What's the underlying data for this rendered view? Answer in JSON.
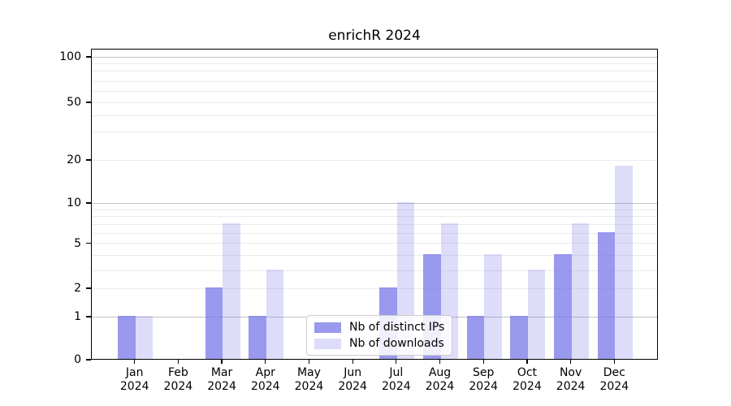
{
  "title": "enrichR 2024",
  "chart_data": {
    "type": "bar",
    "title": "enrichR 2024",
    "categories": [
      "Jan 2024",
      "Feb 2024",
      "Mar 2024",
      "Apr 2024",
      "May 2024",
      "Jun 2024",
      "Jul 2024",
      "Aug 2024",
      "Sep 2024",
      "Oct 2024",
      "Nov 2024",
      "Dec 2024"
    ],
    "series": [
      {
        "name": "Nb of distinct IPs",
        "color_rgba": "rgba(119,119,231,0.75)",
        "values": [
          1,
          0,
          2,
          1,
          0,
          0,
          2,
          4,
          1,
          1,
          4,
          6
        ]
      },
      {
        "name": "Nb of downloads",
        "color_rgba": "rgba(119,119,231,0.25)",
        "values": [
          1,
          0,
          7,
          3,
          0,
          0,
          10,
          7,
          4,
          3,
          7,
          18
        ]
      }
    ],
    "xlabel": "",
    "ylabel": "",
    "yscale": "asinh-log",
    "ytick_values": [
      0,
      1,
      2,
      5,
      10,
      20,
      50,
      100
    ],
    "ytick_labels": [
      "0",
      "1",
      "2",
      "5",
      "10",
      "20",
      "50",
      "100"
    ],
    "minor_grid_values": [
      2,
      3,
      4,
      5,
      6,
      7,
      8,
      9,
      20,
      30,
      40,
      50,
      60,
      70,
      80,
      90
    ],
    "major_grid_values": [
      1,
      10,
      100
    ],
    "ylim": [
      0,
      115
    ],
    "grid": "horizontal",
    "legend_position": "lower center inside",
    "colors": {
      "bar_base": "#7777e7",
      "major_grid": "#c3c3c3",
      "minor_grid": "#ebebeb",
      "spine": "#000000",
      "legend_border": "#cccccc"
    }
  }
}
